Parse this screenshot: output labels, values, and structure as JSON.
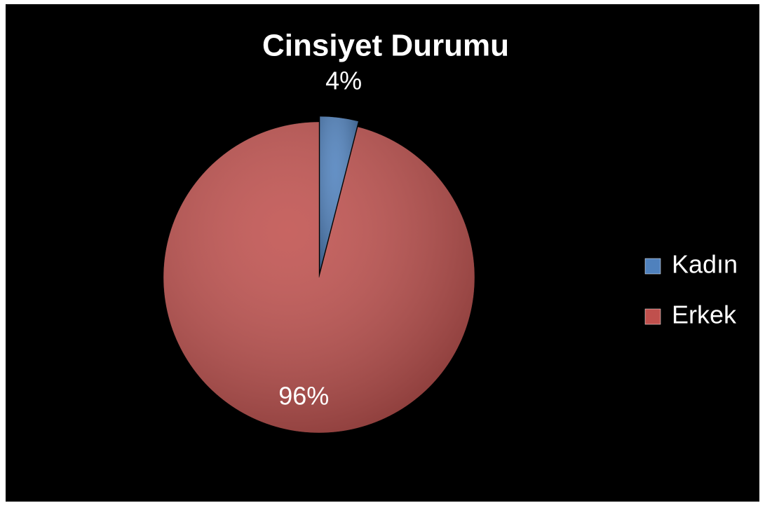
{
  "chart_data": {
    "type": "pie",
    "title": "Cinsiyet Durumu",
    "categories": [
      "Kadın",
      "Erkek"
    ],
    "values": [
      4,
      96
    ],
    "value_labels": [
      "4%",
      "96%"
    ],
    "colors": [
      "#4f81bd",
      "#c0504d"
    ],
    "legend": "right"
  }
}
